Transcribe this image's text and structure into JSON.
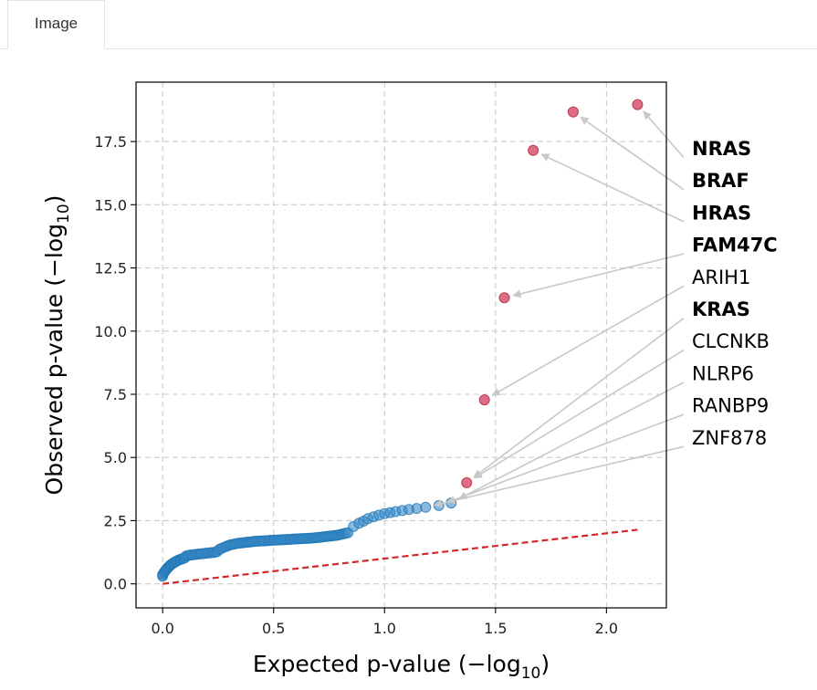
{
  "tabs": [
    {
      "label": "Image",
      "active": true
    }
  ],
  "chart_data": {
    "type": "scatter",
    "title": "",
    "xlabel": "Expected p-value (−log",
    "xlabel_sub": "10",
    "xlabel_end": ")",
    "ylabel": "Observed p-value (−log",
    "ylabel_sub": "10",
    "ylabel_end": ")",
    "xlim": [
      -0.12,
      2.27
    ],
    "ylim": [
      -0.95,
      19.85
    ],
    "xticks": [
      0.0,
      0.5,
      1.0,
      1.5,
      2.0
    ],
    "xtick_labels": [
      "0.0",
      "0.5",
      "1.0",
      "1.5",
      "2.0"
    ],
    "yticks": [
      0.0,
      2.5,
      5.0,
      7.5,
      10.0,
      12.5,
      15.0,
      17.5
    ],
    "ytick_labels": [
      "0.0",
      "2.5",
      "5.0",
      "7.5",
      "10.0",
      "12.5",
      "15.0",
      "17.5"
    ],
    "grid": true,
    "colors": {
      "background_points": "#1f77b4",
      "highlight_points": "#d6546e",
      "reference_line": "#d62728",
      "arrows": "#c8c8c8"
    },
    "reference_line": {
      "x": [
        0.0,
        2.14
      ],
      "y": [
        0.0,
        2.14
      ],
      "style": "dashed"
    },
    "background_points": [
      [
        0.0,
        0.3
      ],
      [
        0.0,
        0.36
      ],
      [
        0.004,
        0.42
      ],
      [
        0.009,
        0.48
      ],
      [
        0.013,
        0.53
      ],
      [
        0.018,
        0.58
      ],
      [
        0.022,
        0.63
      ],
      [
        0.027,
        0.67
      ],
      [
        0.032,
        0.71
      ],
      [
        0.036,
        0.75
      ],
      [
        0.041,
        0.78
      ],
      [
        0.046,
        0.81
      ],
      [
        0.052,
        0.84
      ],
      [
        0.057,
        0.87
      ],
      [
        0.063,
        0.9
      ],
      [
        0.069,
        0.93
      ],
      [
        0.075,
        0.95
      ],
      [
        0.081,
        0.97
      ],
      [
        0.087,
        0.99
      ],
      [
        0.094,
        1.01
      ],
      [
        0.1,
        1.03
      ],
      [
        0.105,
        1.1
      ],
      [
        0.115,
        1.12
      ],
      [
        0.125,
        1.14
      ],
      [
        0.135,
        1.15
      ],
      [
        0.145,
        1.16
      ],
      [
        0.155,
        1.17
      ],
      [
        0.165,
        1.18
      ],
      [
        0.175,
        1.19
      ],
      [
        0.185,
        1.2
      ],
      [
        0.195,
        1.21
      ],
      [
        0.205,
        1.22
      ],
      [
        0.215,
        1.23
      ],
      [
        0.225,
        1.24
      ],
      [
        0.235,
        1.25
      ],
      [
        0.245,
        1.27
      ],
      [
        0.255,
        1.36
      ],
      [
        0.265,
        1.4
      ],
      [
        0.275,
        1.44
      ],
      [
        0.285,
        1.48
      ],
      [
        0.295,
        1.51
      ],
      [
        0.305,
        1.54
      ],
      [
        0.315,
        1.56
      ],
      [
        0.325,
        1.58
      ],
      [
        0.335,
        1.6
      ],
      [
        0.345,
        1.61
      ],
      [
        0.355,
        1.62
      ],
      [
        0.365,
        1.63
      ],
      [
        0.375,
        1.64
      ],
      [
        0.385,
        1.65
      ],
      [
        0.395,
        1.66
      ],
      [
        0.405,
        1.67
      ],
      [
        0.415,
        1.68
      ],
      [
        0.425,
        1.69
      ],
      [
        0.435,
        1.69
      ],
      [
        0.445,
        1.7
      ],
      [
        0.455,
        1.7
      ],
      [
        0.465,
        1.71
      ],
      [
        0.475,
        1.71
      ],
      [
        0.485,
        1.72
      ],
      [
        0.495,
        1.72
      ],
      [
        0.505,
        1.73
      ],
      [
        0.515,
        1.73
      ],
      [
        0.525,
        1.74
      ],
      [
        0.535,
        1.74
      ],
      [
        0.545,
        1.75
      ],
      [
        0.555,
        1.75
      ],
      [
        0.565,
        1.76
      ],
      [
        0.575,
        1.76
      ],
      [
        0.585,
        1.77
      ],
      [
        0.595,
        1.77
      ],
      [
        0.605,
        1.78
      ],
      [
        0.615,
        1.78
      ],
      [
        0.625,
        1.79
      ],
      [
        0.635,
        1.79
      ],
      [
        0.645,
        1.8
      ],
      [
        0.655,
        1.8
      ],
      [
        0.665,
        1.81
      ],
      [
        0.675,
        1.81
      ],
      [
        0.685,
        1.82
      ],
      [
        0.695,
        1.83
      ],
      [
        0.705,
        1.84
      ],
      [
        0.715,
        1.85
      ],
      [
        0.725,
        1.86
      ],
      [
        0.735,
        1.87
      ],
      [
        0.745,
        1.88
      ],
      [
        0.755,
        1.89
      ],
      [
        0.765,
        1.9
      ],
      [
        0.775,
        1.91
      ],
      [
        0.785,
        1.92
      ],
      [
        0.795,
        1.94
      ],
      [
        0.805,
        1.96
      ],
      [
        0.815,
        1.98
      ],
      [
        0.825,
        2.0
      ],
      [
        0.835,
        2.02
      ],
      [
        0.86,
        2.27
      ],
      [
        0.885,
        2.4
      ],
      [
        0.905,
        2.48
      ],
      [
        0.925,
        2.58
      ],
      [
        0.95,
        2.65
      ],
      [
        0.975,
        2.72
      ],
      [
        1.0,
        2.78
      ],
      [
        1.025,
        2.82
      ],
      [
        1.05,
        2.86
      ],
      [
        1.08,
        2.9
      ],
      [
        1.11,
        2.94
      ],
      [
        1.145,
        2.98
      ],
      [
        1.185,
        3.03
      ],
      [
        1.245,
        3.1
      ],
      [
        1.3,
        3.2
      ]
    ],
    "highlight_points": [
      {
        "x": 2.14,
        "y": 18.96
      },
      {
        "x": 1.85,
        "y": 18.67
      },
      {
        "x": 1.67,
        "y": 17.15
      },
      {
        "x": 1.54,
        "y": 11.32
      },
      {
        "x": 1.45,
        "y": 7.28
      },
      {
        "x": 1.37,
        "y": 4.0
      }
    ],
    "annotations": [
      {
        "label": "NRAS",
        "bold": true,
        "x": 2.14,
        "y": 18.96
      },
      {
        "label": "BRAF",
        "bold": true,
        "x": 1.85,
        "y": 18.67
      },
      {
        "label": "HRAS",
        "bold": true,
        "x": 1.67,
        "y": 17.15
      },
      {
        "label": "FAM47C",
        "bold": true,
        "x": 1.54,
        "y": 11.32
      },
      {
        "label": "ARIH1",
        "bold": false,
        "x": 1.45,
        "y": 7.28
      },
      {
        "label": "KRAS",
        "bold": true,
        "x": 1.37,
        "y": 4.0
      },
      {
        "label": "CLCNKB",
        "bold": false,
        "x": 1.37,
        "y": 4.0
      },
      {
        "label": "NLRP6",
        "bold": false,
        "x": 1.3,
        "y": 3.2
      },
      {
        "label": "RANBP9",
        "bold": false,
        "x": 1.245,
        "y": 3.1
      },
      {
        "label": "ZNF878",
        "bold": false,
        "x": 1.185,
        "y": 3.03
      }
    ]
  }
}
